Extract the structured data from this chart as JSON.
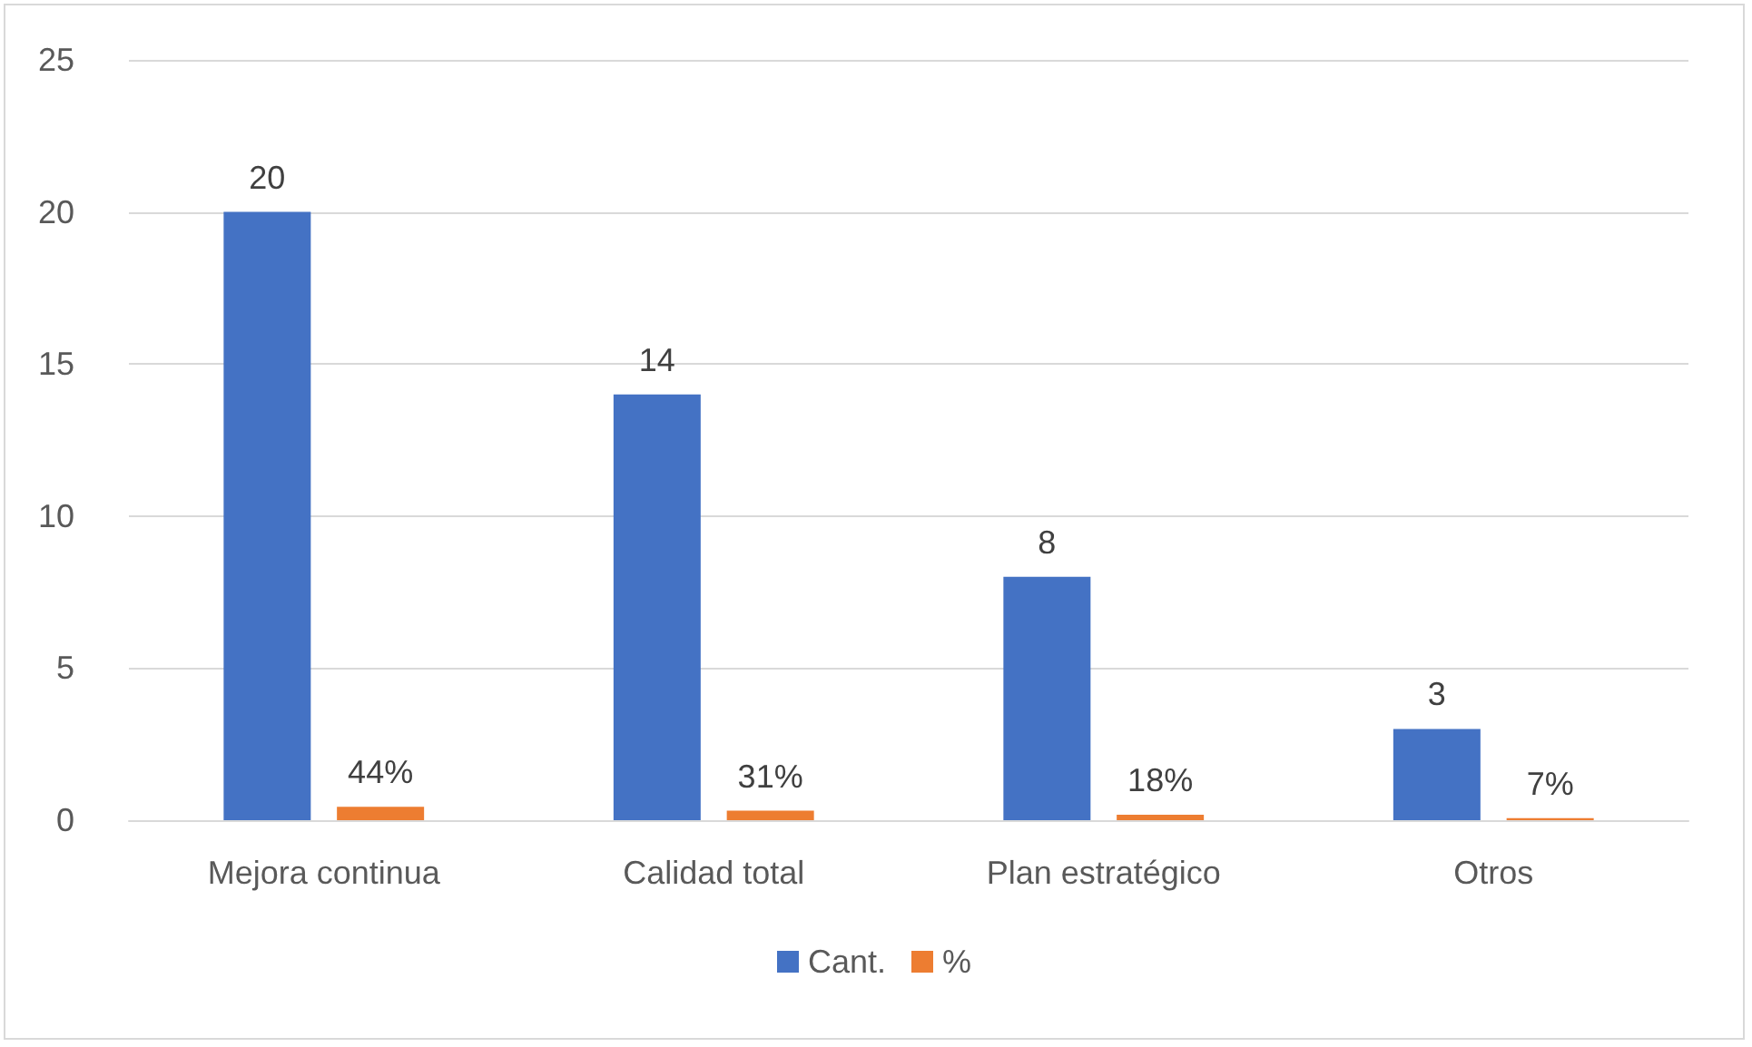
{
  "chart_data": {
    "type": "bar",
    "categories": [
      "Mejora continua",
      "Calidad total",
      "Plan estratégico",
      "Otros"
    ],
    "series": [
      {
        "name": "Cant.",
        "color": "#4472c4",
        "values": [
          20,
          14,
          8,
          3
        ],
        "value_labels": [
          "20",
          "14",
          "8",
          "3"
        ]
      },
      {
        "name": "%",
        "color": "#ed7d31",
        "values": [
          0.44,
          0.31,
          0.18,
          0.07
        ],
        "value_labels": [
          "44%",
          "31%",
          "18%",
          "7%"
        ]
      }
    ],
    "ylim": [
      0,
      25
    ],
    "yticks": [
      0,
      5,
      10,
      15,
      20,
      25
    ],
    "grid": "y",
    "legend": "bottom"
  }
}
